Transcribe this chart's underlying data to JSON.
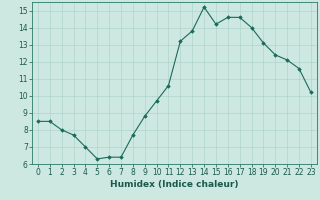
{
  "x": [
    0,
    1,
    2,
    3,
    4,
    5,
    6,
    7,
    8,
    9,
    10,
    11,
    12,
    13,
    14,
    15,
    16,
    17,
    18,
    19,
    20,
    21,
    22,
    23
  ],
  "y": [
    8.5,
    8.5,
    8.0,
    7.7,
    7.0,
    6.3,
    6.4,
    6.4,
    7.7,
    8.8,
    9.7,
    10.6,
    13.2,
    13.8,
    15.2,
    14.2,
    14.6,
    14.6,
    14.0,
    13.1,
    12.4,
    12.1,
    11.6,
    10.2
  ],
  "xlabel": "Humidex (Indice chaleur)",
  "ylabel": "",
  "xlim": [
    -0.5,
    23.5
  ],
  "ylim": [
    6,
    15.5
  ],
  "yticks": [
    6,
    7,
    8,
    9,
    10,
    11,
    12,
    13,
    14,
    15
  ],
  "xticks": [
    0,
    1,
    2,
    3,
    4,
    5,
    6,
    7,
    8,
    9,
    10,
    11,
    12,
    13,
    14,
    15,
    16,
    17,
    18,
    19,
    20,
    21,
    22,
    23
  ],
  "line_color": "#1a6b5a",
  "marker": "D",
  "marker_size": 1.8,
  "bg_color": "#cde8e0",
  "grid_color": "#a8cfc5",
  "axis_color": "#2a7a65",
  "label_color": "#1a5a4a",
  "tick_fontsize": 5.5,
  "xlabel_fontsize": 6.5
}
